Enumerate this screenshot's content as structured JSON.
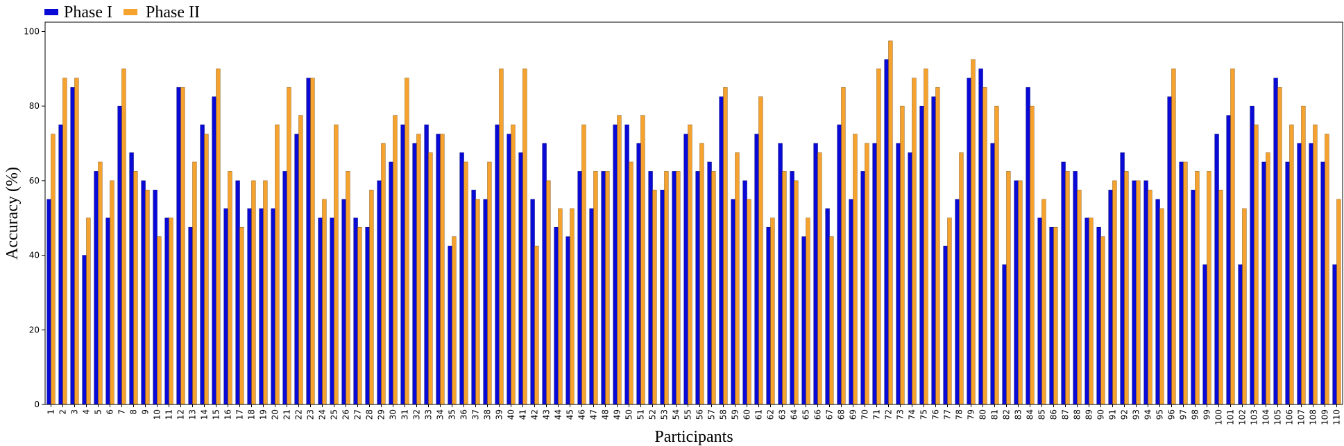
{
  "chart_data": {
    "type": "bar",
    "title": "",
    "xlabel": "Participants",
    "ylabel": "Accuracy (%)",
    "ylim": [
      0,
      102.5
    ],
    "yticks": [
      0,
      20,
      40,
      60,
      80,
      100
    ],
    "grid": false,
    "legend_position": "top-left, above plot",
    "categories": [
      "1",
      "2",
      "3",
      "4",
      "5",
      "6",
      "7",
      "8",
      "9",
      "10",
      "11",
      "12",
      "13",
      "14",
      "15",
      "16",
      "17",
      "18",
      "19",
      "20",
      "21",
      "22",
      "23",
      "24",
      "25",
      "26",
      "27",
      "28",
      "29",
      "30",
      "31",
      "32",
      "33",
      "34",
      "35",
      "36",
      "37",
      "38",
      "39",
      "40",
      "41",
      "42",
      "43",
      "44",
      "45",
      "46",
      "47",
      "48",
      "49",
      "50",
      "51",
      "52",
      "53",
      "54",
      "55",
      "56",
      "57",
      "58",
      "59",
      "60",
      "61",
      "62",
      "63",
      "64",
      "65",
      "66",
      "67",
      "68",
      "69",
      "70",
      "71",
      "72",
      "73",
      "74",
      "75",
      "76",
      "77",
      "78",
      "79",
      "80",
      "81",
      "82",
      "83",
      "84",
      "85",
      "86",
      "87",
      "88",
      "89",
      "90",
      "91",
      "92",
      "93",
      "94",
      "95",
      "96",
      "97",
      "98",
      "99",
      "100",
      "101",
      "102",
      "103",
      "104",
      "105",
      "106",
      "107",
      "108",
      "109",
      "110"
    ],
    "series": [
      {
        "name": "Phase I",
        "color": "#0a0ad6",
        "values": [
          55,
          75,
          85,
          40,
          62.5,
          50,
          80,
          67.5,
          60,
          57.5,
          50,
          85,
          47.5,
          75,
          82.5,
          52.5,
          60,
          52.5,
          52.5,
          52.5,
          62.5,
          72.5,
          87.5,
          50,
          50,
          55,
          50,
          47.5,
          60,
          65,
          75,
          70,
          75,
          72.5,
          42.5,
          67.5,
          57.5,
          55,
          75,
          72.5,
          67.5,
          55,
          70,
          47.5,
          45,
          62.5,
          52.5,
          62.5,
          75,
          75,
          70,
          62.5,
          57.5,
          62.5,
          72.5,
          62.5,
          65,
          82.5,
          55,
          60,
          72.5,
          47.5,
          70,
          62.5,
          45,
          70,
          52.5,
          75,
          55,
          62.5,
          70,
          92.5,
          70,
          67.5,
          80,
          82.5,
          42.5,
          55,
          87.5,
          90,
          70,
          37.5,
          60,
          85,
          50,
          47.5,
          65,
          62.5,
          50,
          47.5,
          57.5,
          67.5,
          60,
          60,
          55,
          82.5,
          65,
          57.5,
          37.5,
          72.5,
          77.5,
          37.5,
          80,
          65,
          87.5,
          65,
          70,
          70,
          65,
          37.5
        ]
      },
      {
        "name": "Phase II",
        "color": "#f5a22e",
        "values": [
          72.5,
          87.5,
          87.5,
          50,
          65,
          60,
          90,
          62.5,
          57.5,
          45,
          50,
          85,
          65,
          72.5,
          90,
          62.5,
          47.5,
          60,
          60,
          75,
          85,
          77.5,
          87.5,
          55,
          75,
          62.5,
          47.5,
          57.5,
          70,
          77.5,
          87.5,
          72.5,
          67.5,
          72.5,
          45,
          65,
          55,
          65,
          90,
          75,
          90,
          42.5,
          60,
          52.5,
          52.5,
          75,
          62.5,
          62.5,
          77.5,
          65,
          77.5,
          57.5,
          62.5,
          62.5,
          75,
          70,
          62.5,
          85,
          67.5,
          55,
          82.5,
          50,
          62.5,
          60,
          50,
          67.5,
          45,
          85,
          72.5,
          70,
          90,
          97.5,
          80,
          87.5,
          90,
          85,
          50,
          67.5,
          92.5,
          85,
          80,
          62.5,
          60,
          80,
          55,
          47.5,
          62.5,
          57.5,
          50,
          45,
          60,
          62.5,
          60,
          57.5,
          52.5,
          90,
          65,
          62.5,
          62.5,
          57.5,
          90,
          52.5,
          75,
          67.5,
          85,
          75,
          80,
          75,
          72.5,
          55
        ]
      }
    ]
  }
}
